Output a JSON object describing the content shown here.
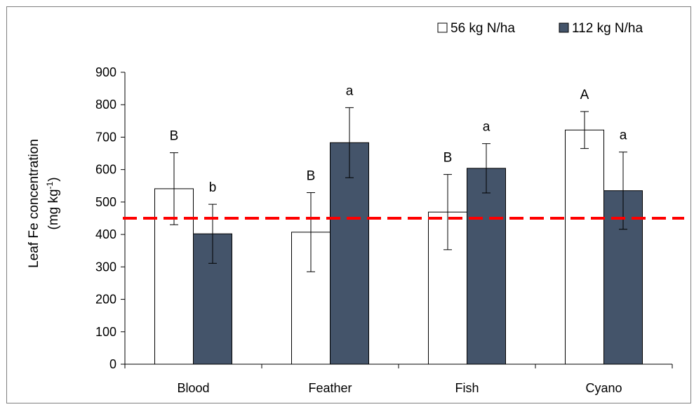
{
  "chart_data": {
    "type": "bar",
    "categories": [
      "Blood",
      "Feather",
      "Fish",
      "Cyano"
    ],
    "series": [
      {
        "name": "56 kg N/ha",
        "color": "#ffffff",
        "values": [
          541,
          407,
          469,
          722
        ],
        "errors": [
          111,
          122,
          116,
          57
        ],
        "letters": [
          "B",
          "B",
          "B",
          "A"
        ]
      },
      {
        "name": "112 kg N/ha",
        "color": "#44546a",
        "values": [
          402,
          683,
          604,
          535
        ],
        "errors": [
          91,
          108,
          76,
          119
        ],
        "letters": [
          "b",
          "a",
          "a",
          "a"
        ]
      }
    ],
    "ylabel_line1": "Leaf Fe concentration",
    "ylabel_line2_prefix": "(mg kg",
    "ylabel_line2_sup": "-1",
    "ylabel_line2_suffix": ")",
    "ylim": [
      0,
      900
    ],
    "yticks": [
      "0",
      "100",
      "200",
      "300",
      "400",
      "500",
      "600",
      "700",
      "800",
      "900"
    ],
    "reference_line": {
      "value": 450,
      "color": "#ff0000",
      "style": "dashed"
    },
    "legend_position": "top-right"
  }
}
